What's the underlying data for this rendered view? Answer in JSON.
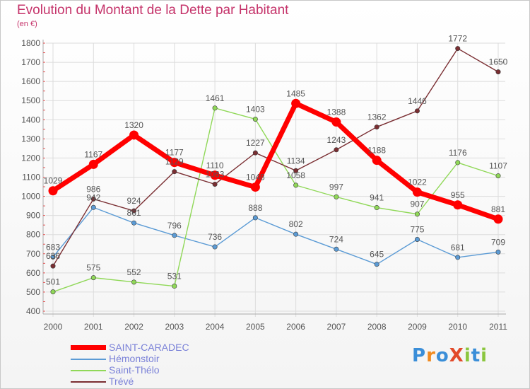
{
  "title": "Evolution du Montant de la Dette par Habitant",
  "subtitle": "(en €)",
  "brand": {
    "text": "ProXiti",
    "letter_colors": [
      "#3a8ed8",
      "#f08a20",
      "#3a8ed8",
      "#e24a2a",
      "#8bc63e",
      "#3a8ed8",
      "#8bc63e"
    ]
  },
  "chart_data": {
    "type": "line",
    "categories": [
      "2000",
      "2001",
      "2002",
      "2003",
      "2004",
      "2005",
      "2006",
      "2007",
      "2008",
      "2009",
      "2010",
      "2011"
    ],
    "ylim": [
      400,
      1800
    ],
    "yticks": [
      400,
      500,
      600,
      700,
      800,
      900,
      1000,
      1100,
      1200,
      1300,
      1400,
      1500,
      1600,
      1700,
      1800
    ],
    "grid": true,
    "legend_position": "bottom-left",
    "series": [
      {
        "name": "SAINT-CARADEC",
        "color": "#ff0000",
        "values": [
          1029,
          1167,
          1320,
          1177,
          1110,
          1048,
          1485,
          1388,
          1188,
          1022,
          955,
          881
        ]
      },
      {
        "name": "Hémonstoir",
        "color": "#5b9bd5",
        "values": [
          683,
          942,
          861,
          796,
          736,
          888,
          802,
          724,
          645,
          775,
          681,
          709
        ]
      },
      {
        "name": "Saint-Thélo",
        "color": "#90d858",
        "values": [
          501,
          575,
          552,
          531,
          1461,
          1403,
          1058,
          997,
          941,
          907,
          1176,
          1107
        ]
      },
      {
        "name": "Trévé",
        "color": "#7a2e32",
        "values": [
          636,
          986,
          924,
          1129,
          1063,
          1227,
          1134,
          1243,
          1362,
          1446,
          1772,
          1650
        ]
      }
    ]
  }
}
